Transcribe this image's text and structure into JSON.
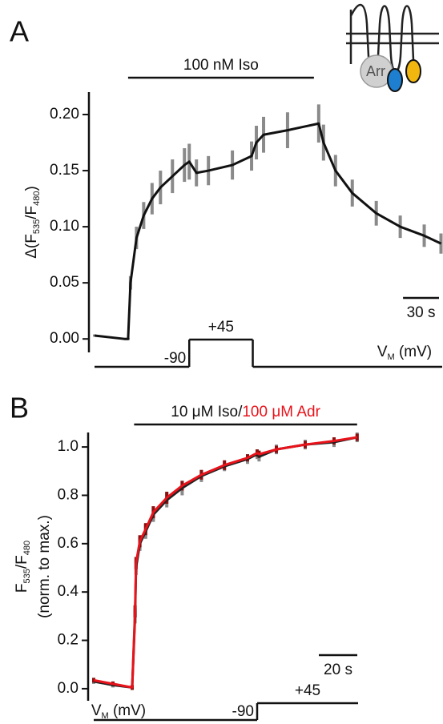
{
  "chart_data": [
    {
      "type": "line",
      "panel_label": "A",
      "ylabel": [
        {
          "parts": [
            "Δ(F",
            "535",
            "/F",
            "480",
            ")"
          ],
          "subscript": [
            false,
            true,
            false,
            true,
            false
          ]
        }
      ],
      "xlim": [
        0,
        290
      ],
      "ylim": [
        -0.012,
        0.22
      ],
      "yticks": [
        {
          "value": 0,
          "label": "0.00"
        },
        {
          "value": 0.05,
          "label": "0.05"
        },
        {
          "value": 0.1,
          "label": "0.10"
        },
        {
          "value": 0.15,
          "label": "0.15"
        },
        {
          "value": 0.2,
          "label": "0.20"
        }
      ],
      "x": [
        0,
        25,
        28,
        30,
        35,
        41,
        48,
        55,
        65,
        75,
        79,
        85,
        95,
        115,
        131,
        135,
        141,
        161,
        187,
        191,
        201,
        215,
        235,
        255,
        275,
        289
      ],
      "series": [
        {
          "color": "#111111",
          "error_color": "#8a8a8a",
          "values": [
            0.003,
            0,
            0,
            0.05,
            0.09,
            0.11,
            0.125,
            0.135,
            0.145,
            0.155,
            0.158,
            0.148,
            0.15,
            0.155,
            0.163,
            0.175,
            0.182,
            0.186,
            0.192,
            0.175,
            0.15,
            0.13,
            0.112,
            0.1,
            0.092,
            0.085
          ],
          "errors": [
            0.001,
            0.001,
            0.001,
            0.006,
            0.01,
            0.012,
            0.014,
            0.015,
            0.015,
            0.015,
            0.016,
            0.012,
            0.013,
            0.013,
            0.013,
            0.015,
            0.016,
            0.016,
            0.017,
            0.016,
            0.014,
            0.012,
            0.011,
            0.01,
            0.01,
            0.009
          ]
        }
      ],
      "stimulus": {
        "label_parts": [
          {
            "text": "100 nM Iso",
            "color": "#111111"
          }
        ],
        "start": 28,
        "end": 183
      },
      "scale_bar": {
        "value": 30,
        "label": "30 s"
      },
      "protocol": {
        "levels": [
          -90,
          {
            "value": 45,
            "label": "+45"
          }
        ],
        "step": [
          79,
          132
        ],
        "vm_label": [
          "V",
          "M",
          " (mV)"
        ]
      },
      "inset_label": "Arr"
    },
    {
      "type": "line",
      "panel_label": "B",
      "ylabel": [
        {
          "parts": [
            "F",
            "535",
            "/F",
            "480"
          ],
          "subscript": [
            false,
            true,
            false,
            true
          ]
        },
        {
          "parts": [
            "(norm. to max.)"
          ],
          "subscript": [
            false
          ]
        }
      ],
      "xlim": [
        0,
        137.5
      ],
      "ylim": [
        -0.05,
        1.06
      ],
      "yticks": [
        {
          "value": 0,
          "label": "0.0"
        },
        {
          "value": 0.2,
          "label": "0.2"
        },
        {
          "value": 0.4,
          "label": "0.4"
        },
        {
          "value": 0.6,
          "label": "0.6"
        },
        {
          "value": 0.8,
          "label": "0.8"
        },
        {
          "value": 1,
          "label": "1.0"
        }
      ],
      "x": [
        0,
        10,
        20,
        21.5,
        22,
        24,
        27,
        31,
        38,
        46,
        56,
        68,
        80,
        85,
        86,
        95,
        110,
        125,
        137
      ],
      "series": [
        {
          "color": "#222222",
          "error_color": "#8a8a8a",
          "values": [
            0.03,
            0.015,
            0.005,
            0.3,
            0.5,
            0.6,
            0.65,
            0.72,
            0.78,
            0.83,
            0.88,
            0.92,
            0.95,
            0.97,
            0.96,
            0.99,
            1.01,
            1.02,
            1.04
          ],
          "errors": [
            0.01,
            0.01,
            0.01,
            0.03,
            0.03,
            0.03,
            0.03,
            0.03,
            0.03,
            0.03,
            0.025,
            0.02,
            0.02,
            0.02,
            0.02,
            0.02,
            0.02,
            0.02,
            0.02
          ]
        },
        {
          "color": "#e8131b",
          "error_color": "#8b1010",
          "values": [
            0.035,
            0.02,
            0.005,
            0.32,
            0.52,
            0.61,
            0.66,
            0.73,
            0.79,
            0.84,
            0.885,
            0.925,
            0.955,
            0.975,
            0.97,
            0.99,
            1.01,
            1.025,
            1.04
          ],
          "errors": [
            0.01,
            0.01,
            0.01,
            0.025,
            0.025,
            0.025,
            0.025,
            0.025,
            0.025,
            0.02,
            0.02,
            0.02,
            0.015,
            0.015,
            0.015,
            0.015,
            0.015,
            0.015,
            0.015
          ]
        }
      ],
      "stimulus": {
        "label_parts": [
          {
            "text": "10 μM Iso/",
            "color": "#111111"
          },
          {
            "text": "100 μM Adr",
            "color": "#e8131b"
          }
        ],
        "start": 21,
        "end": 137
      },
      "scale_bar": {
        "value": 20,
        "label": "20 s"
      },
      "protocol": {
        "levels": [
          -90,
          {
            "value": 45,
            "label": "+45"
          }
        ],
        "step": [
          85,
          137.5
        ],
        "vm_label": [
          "V",
          "M",
          " (mV)"
        ]
      }
    }
  ]
}
